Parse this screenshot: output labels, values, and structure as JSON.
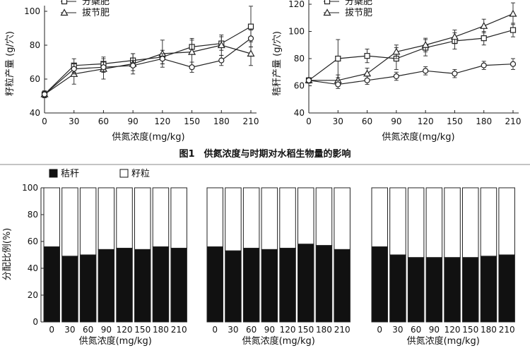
{
  "figure_caption": "图1　供氮浓度与时期对水稻生物量的影响",
  "colors": {
    "stalk": "#111111",
    "grain": "#ffffff",
    "line": "#222222"
  },
  "chart_data": [
    {
      "id": "grain-yield",
      "type": "line",
      "ylabel": "籽粒产量 (g/穴)",
      "xlabel": "供氮浓度(mg/kg)",
      "x": [
        0,
        30,
        60,
        90,
        120,
        150,
        180,
        210
      ],
      "xlim": [
        0,
        210
      ],
      "ylim": [
        40,
        100
      ],
      "yticks": [
        40,
        60,
        80,
        100
      ],
      "series": [
        {
          "name": "分蘖肥",
          "marker": "square",
          "values": [
            51,
            68,
            69,
            71,
            73,
            79,
            81,
            91
          ],
          "err": [
            2,
            4,
            4,
            4,
            4,
            4,
            4,
            12
          ]
        },
        {
          "name": "拔节肥",
          "marker": "triangle",
          "values": [
            51,
            63,
            66,
            69,
            75,
            76,
            80,
            75
          ],
          "err": [
            2,
            6,
            6,
            6,
            8,
            8,
            6,
            7
          ]
        },
        {
          "name": "",
          "marker": "circle",
          "values": [
            51,
            66,
            67,
            68,
            72,
            67,
            71,
            84
          ],
          "err": [
            2,
            3,
            3,
            3,
            3,
            3,
            3,
            5
          ]
        }
      ],
      "legend_labels": [
        "分蘖肥",
        "拔节肥"
      ]
    },
    {
      "id": "stalk-yield",
      "type": "line",
      "ylabel": "秸秆产量 (g/穴)",
      "xlabel": "供氮浓度(mg/kg)",
      "x": [
        0,
        30,
        60,
        90,
        120,
        150,
        180,
        210
      ],
      "xlim": [
        0,
        210
      ],
      "ylim": [
        40,
        120
      ],
      "yticks": [
        40,
        60,
        80,
        100,
        120
      ],
      "series": [
        {
          "name": "分蘖肥",
          "marker": "square",
          "values": [
            64,
            80,
            82,
            80,
            88,
            93,
            95,
            101
          ],
          "err": [
            2,
            14,
            5,
            8,
            6,
            6,
            5,
            5
          ]
        },
        {
          "name": "拔节肥",
          "marker": "triangle",
          "values": [
            64,
            64,
            69,
            85,
            90,
            96,
            104,
            113
          ],
          "err": [
            2,
            4,
            4,
            5,
            5,
            5,
            5,
            8
          ]
        },
        {
          "name": "",
          "marker": "circle",
          "values": [
            64,
            61,
            64,
            67,
            71,
            69,
            75,
            76
          ],
          "err": [
            2,
            3,
            3,
            3,
            3,
            3,
            3,
            4
          ]
        }
      ],
      "legend_labels": [
        "分蘖肥",
        "拔节肥"
      ]
    },
    {
      "id": "allocation",
      "type": "bar",
      "stacked": true,
      "ylabel": "分配比例(%)",
      "xlabel": "供氮浓度(mg/kg)",
      "ylim": [
        0,
        100
      ],
      "yticks": [
        0,
        20,
        40,
        60,
        80,
        100
      ],
      "legend": [
        "秸秆",
        "籽粒"
      ],
      "categories": [
        "0",
        "30",
        "60",
        "90",
        "120",
        "150",
        "180",
        "210"
      ],
      "groups": [
        {
          "name": "group-1",
          "stalk": [
            56,
            49,
            50,
            54,
            55,
            54,
            56,
            55
          ]
        },
        {
          "name": "group-2",
          "stalk": [
            56,
            53,
            55,
            54,
            55,
            58,
            57,
            54
          ]
        },
        {
          "name": "group-3",
          "stalk": [
            56,
            50,
            48,
            48,
            48,
            48,
            49,
            50
          ]
        }
      ]
    }
  ]
}
